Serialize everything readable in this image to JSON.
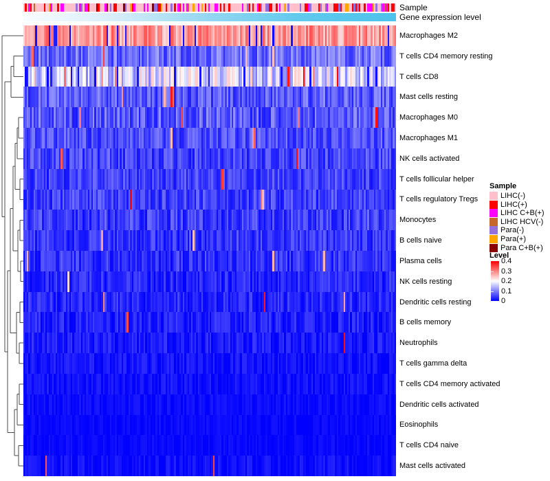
{
  "annotations": {
    "sample_label": "Sample",
    "gene_label": "Gene expression level"
  },
  "chart_data": {
    "type": "heatmap",
    "title": "",
    "x_axis": {
      "sample_columns": 220,
      "tick_labels_shown": false
    },
    "value_range": [
      0,
      0.4
    ],
    "colormap": {
      "low": "#0000FF",
      "mid": "#FFFFFF",
      "high": "#FF0000",
      "mid_value": 0.2
    },
    "rows": [
      {
        "label": "Macrophages M2",
        "mean": 0.28,
        "sd": 0.055,
        "hi": 0.0,
        "lo": 0.045
      },
      {
        "label": "T cells CD4 memory resting",
        "mean": 0.085,
        "sd": 0.05,
        "hi": 0.02,
        "lo": 0.0
      },
      {
        "label": "T cells CD8",
        "mean": 0.17,
        "sd": 0.075,
        "hi": 0.05,
        "lo": 0.04
      },
      {
        "label": "Mast cells resting",
        "mean": 0.07,
        "sd": 0.045,
        "hi": 0.012,
        "lo": 0.0
      },
      {
        "label": "Macrophages M0",
        "mean": 0.07,
        "sd": 0.05,
        "hi": 0.02,
        "lo": 0.0
      },
      {
        "label": "Macrophages M1",
        "mean": 0.06,
        "sd": 0.04,
        "hi": 0.008,
        "lo": 0.0
      },
      {
        "label": "NK cells activated",
        "mean": 0.055,
        "sd": 0.04,
        "hi": 0.004,
        "lo": 0.0
      },
      {
        "label": "T cells follicular helper",
        "mean": 0.05,
        "sd": 0.038,
        "hi": 0.004,
        "lo": 0.0
      },
      {
        "label": "T cells regulatory  Tregs",
        "mean": 0.05,
        "sd": 0.038,
        "hi": 0.008,
        "lo": 0.0
      },
      {
        "label": "Monocytes",
        "mean": 0.048,
        "sd": 0.04,
        "hi": 0.004,
        "lo": 0.0
      },
      {
        "label": "B cells naive",
        "mean": 0.042,
        "sd": 0.035,
        "hi": 0.004,
        "lo": 0.0
      },
      {
        "label": "Plasma cells",
        "mean": 0.04,
        "sd": 0.035,
        "hi": 0.008,
        "lo": 0.0
      },
      {
        "label": "NK cells resting",
        "mean": 0.03,
        "sd": 0.03,
        "hi": 0.003,
        "lo": 0.0
      },
      {
        "label": "Dendritic cells resting",
        "mean": 0.03,
        "sd": 0.03,
        "hi": 0.006,
        "lo": 0.0
      },
      {
        "label": "B cells memory",
        "mean": 0.025,
        "sd": 0.027,
        "hi": 0.003,
        "lo": 0.0
      },
      {
        "label": "Neutrophils",
        "mean": 0.02,
        "sd": 0.025,
        "hi": 0.002,
        "lo": 0.0
      },
      {
        "label": "T cells gamma delta",
        "mean": 0.014,
        "sd": 0.02,
        "hi": 0.001,
        "lo": 0.0
      },
      {
        "label": "T cells CD4 memory activated",
        "mean": 0.012,
        "sd": 0.018,
        "hi": 0.002,
        "lo": 0.0
      },
      {
        "label": "Dendritic cells activated",
        "mean": 0.008,
        "sd": 0.013,
        "hi": 0.001,
        "lo": 0.0
      },
      {
        "label": "Eosinophils",
        "mean": 0.006,
        "sd": 0.01,
        "hi": 0.001,
        "lo": 0.0
      },
      {
        "label": "T cells CD4 naive",
        "mean": 0.006,
        "sd": 0.011,
        "hi": 0.001,
        "lo": 0.0
      },
      {
        "label": "Mast cells activated",
        "mean": 0.012,
        "sd": 0.018,
        "hi": 0.004,
        "lo": 0.0
      }
    ],
    "column_annotations": [
      {
        "name": "Sample",
        "type": "categorical",
        "groups": [
          {
            "label": "LIHC(-)",
            "color": "#FFC0CB",
            "weight": 0.52
          },
          {
            "label": "LIHC(+)",
            "color": "#FF0000",
            "weight": 0.16
          },
          {
            "label": "LIHC C+B(+)",
            "color": "#FF00FF",
            "weight": 0.12
          },
          {
            "label": "LIHC HCV(-)",
            "color": "#C7662A",
            "weight": 0.035
          },
          {
            "label": "Para(-)",
            "color": "#9370DB",
            "weight": 0.1
          },
          {
            "label": "Para(+)",
            "color": "#FFA500",
            "weight": 0.045
          },
          {
            "label": "Para C+B(+)",
            "color": "#8B0000",
            "weight": 0.02
          }
        ]
      },
      {
        "name": "Gene expression level",
        "type": "continuous",
        "gradient": [
          "#F8FCFF",
          "#D6EDF9",
          "#93D6F1",
          "#5FC9ED",
          "#4DC2EB"
        ]
      }
    ],
    "legend": {
      "sample": {
        "title": "Sample"
      },
      "level": {
        "title": "Level",
        "ticks": [
          "0.4",
          "0.3",
          "0.2",
          "0.1",
          "0"
        ]
      }
    },
    "dendrogram": {
      "line_color": "#4a4a4a",
      "merges": [
        [
          "L1",
          "L2",
          20
        ],
        [
          "M0",
          "L3",
          16
        ],
        [
          "L4",
          "L5",
          27
        ],
        [
          "M2",
          "L6",
          25
        ],
        [
          "L7",
          "L8",
          29
        ],
        [
          "M3",
          "M4",
          22
        ],
        [
          "L9",
          "L10",
          29
        ],
        [
          "L11",
          "L12",
          30
        ],
        [
          "M6",
          "M7",
          26
        ],
        [
          "M5",
          "M8",
          19
        ],
        [
          "L13",
          "L14",
          29
        ],
        [
          "L15",
          "L16",
          28
        ],
        [
          "M10",
          "M11",
          24
        ],
        [
          "M9",
          "M12",
          15
        ],
        [
          "L17",
          "L18",
          28
        ],
        [
          "M14",
          "L19",
          25
        ],
        [
          "L20",
          "L21",
          27
        ],
        [
          "M15",
          "M16",
          21
        ],
        [
          "M13",
          "M17",
          11
        ],
        [
          "M1",
          "M18",
          7
        ],
        [
          "L0",
          "M19",
          3
        ]
      ]
    },
    "seed": 7
  }
}
